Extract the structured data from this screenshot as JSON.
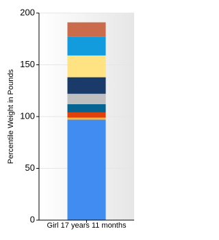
{
  "chart_data": {
    "type": "stacked_bar",
    "ylabel": "Percentile Weight in Pounds",
    "categories": [
      "Girl 17 years 11 months"
    ],
    "series": [
      {
        "color": "#418cf0",
        "values": [
          97
        ]
      },
      {
        "color": "#fcb441",
        "values": [
          2
        ]
      },
      {
        "color": "#e0400a",
        "values": [
          5
        ]
      },
      {
        "color": "#056492",
        "values": [
          8
        ]
      },
      {
        "color": "#bfbfbf",
        "values": [
          10
        ]
      },
      {
        "color": "#1a3b69",
        "values": [
          16
        ]
      },
      {
        "color": "#ffe382",
        "values": [
          21
        ]
      },
      {
        "color": "#129cdd",
        "values": [
          18
        ]
      },
      {
        "color": "#ca6b4b",
        "values": [
          14
        ]
      }
    ],
    "ylim": [
      0,
      200
    ],
    "yticks": [
      0,
      50,
      100,
      150,
      200
    ],
    "grid": true
  }
}
